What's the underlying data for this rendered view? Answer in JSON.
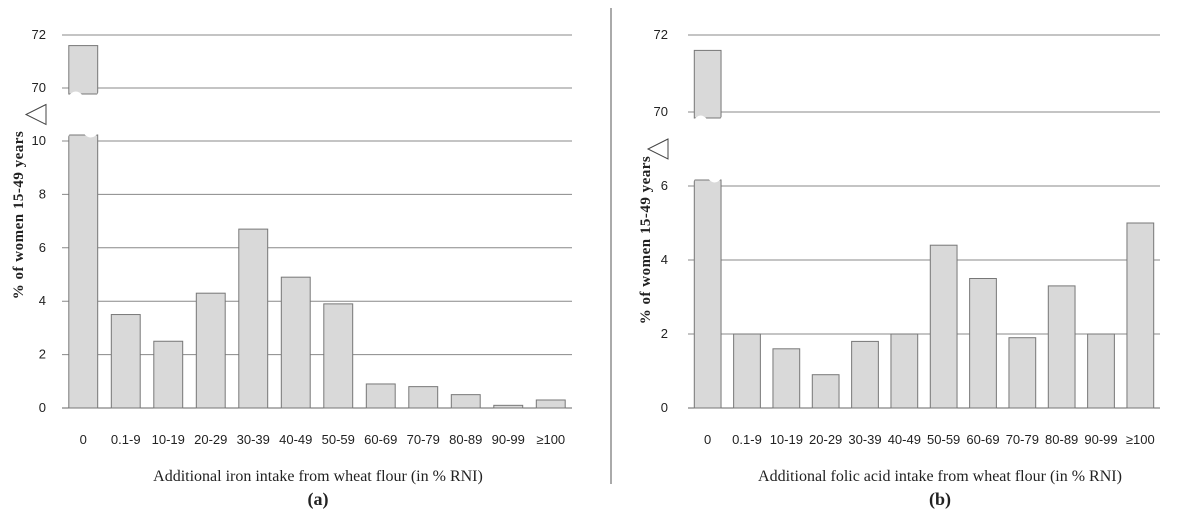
{
  "chart_data": [
    {
      "type": "bar",
      "panel_label": "(a)",
      "xlabel": "Additional iron intake from wheat flour (in % RNI)",
      "ylabel": "% of women 15-49 years",
      "categories": [
        "0",
        "0.1-9",
        "10-19",
        "20-29",
        "30-39",
        "40-49",
        "50-59",
        "60-69",
        "70-79",
        "80-89",
        "90-99",
        "≥100"
      ],
      "values": [
        71.6,
        3.5,
        2.5,
        4.3,
        6.7,
        4.9,
        3.9,
        0.9,
        0.8,
        0.5,
        0.1,
        0.3
      ],
      "ylim_lower": [
        0,
        10
      ],
      "ylim_upper": [
        70,
        72
      ],
      "yticks_lower": [
        "0",
        "2",
        "4",
        "6",
        "8",
        "10"
      ],
      "yticks_upper": [
        "70",
        "72"
      ],
      "axis_break": true,
      "grid": true,
      "bar_color": "#d9d9d9"
    },
    {
      "type": "bar",
      "panel_label": "(b)",
      "xlabel": "Additional folic acid intake from wheat flour (in % RNI)",
      "ylabel": "% of women 15-49 years",
      "categories": [
        "0",
        "0.1-9",
        "10-19",
        "20-29",
        "30-39",
        "40-49",
        "50-59",
        "60-69",
        "70-79",
        "80-89",
        "90-99",
        "≥100"
      ],
      "values": [
        71.6,
        2.0,
        1.6,
        0.9,
        1.8,
        2.0,
        4.4,
        3.5,
        1.9,
        3.3,
        2.0,
        5.0
      ],
      "ylim_lower": [
        0,
        6
      ],
      "ylim_upper": [
        70,
        72
      ],
      "yticks_lower": [
        "0",
        "2",
        "4",
        "6"
      ],
      "yticks_upper": [
        "70",
        "72"
      ],
      "axis_break": true,
      "grid": true,
      "bar_color": "#d9d9d9"
    }
  ]
}
